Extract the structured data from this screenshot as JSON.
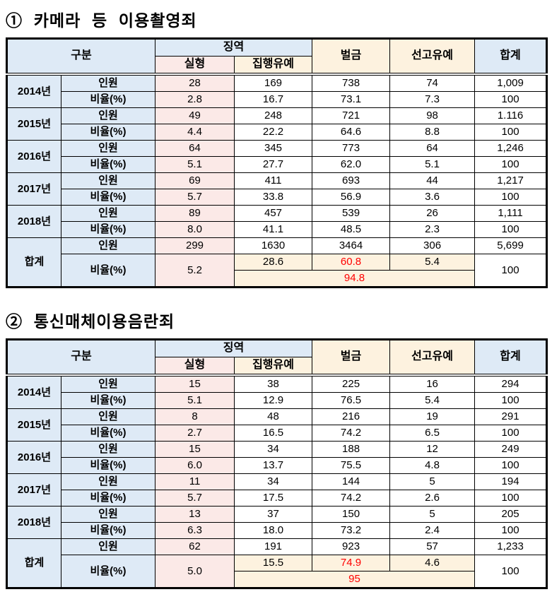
{
  "colors": {
    "header_blue": "#DEEAF6",
    "pink_fill": "#FBE9E7",
    "cream_fill": "#FDF2DF",
    "highlight_red": "#FF0000",
    "border_black": "#000000"
  },
  "header_labels": {
    "gubun": "구분",
    "jingyeok": "징역",
    "silhyeong": "실형",
    "jiphaengyuye": "집행유예",
    "beolgeum": "벌금",
    "seongoyuye": "선고유예",
    "hapgye": "합계"
  },
  "row_labels": {
    "inwon": "인원",
    "biyul": "비율(%)",
    "total": "합계"
  },
  "tables": [
    {
      "title": "① 카메라 등 이용촬영죄",
      "years": [
        {
          "year": "2014년",
          "inwon": [
            "28",
            "169",
            "738",
            "74",
            "1,009"
          ],
          "biyul": [
            "2.8",
            "16.7",
            "73.1",
            "7.3",
            "100"
          ]
        },
        {
          "year": "2015년",
          "inwon": [
            "49",
            "248",
            "721",
            "98",
            "1.116"
          ],
          "biyul": [
            "4.4",
            "22.2",
            "64.6",
            "8.8",
            "100"
          ]
        },
        {
          "year": "2016년",
          "inwon": [
            "64",
            "345",
            "773",
            "64",
            "1,246"
          ],
          "biyul": [
            "5.1",
            "27.7",
            "62.0",
            "5.1",
            "100"
          ]
        },
        {
          "year": "2017년",
          "inwon": [
            "69",
            "411",
            "693",
            "44",
            "1,217"
          ],
          "biyul": [
            "5.7",
            "33.8",
            "56.9",
            "3.6",
            "100"
          ]
        },
        {
          "year": "2018년",
          "inwon": [
            "89",
            "457",
            "539",
            "26",
            "1,111"
          ],
          "biyul": [
            "8.0",
            "41.1",
            "48.5",
            "2.3",
            "100"
          ]
        }
      ],
      "total": {
        "inwon": [
          "299",
          "1630",
          "3464",
          "306",
          "5,699"
        ],
        "silhyeong_ratio": "5.2",
        "sub_ratios": [
          "28.6",
          "60.8",
          "5.4"
        ],
        "sub_ratios_red": [
          false,
          true,
          false
        ],
        "merged_ratio": "94.8",
        "total_ratio": "100"
      }
    },
    {
      "title": "② 통신매체이용음란죄",
      "years": [
        {
          "year": "2014년",
          "inwon": [
            "15",
            "38",
            "225",
            "16",
            "294"
          ],
          "biyul": [
            "5.1",
            "12.9",
            "76.5",
            "5.4",
            "100"
          ]
        },
        {
          "year": "2015년",
          "inwon": [
            "8",
            "48",
            "216",
            "19",
            "291"
          ],
          "biyul": [
            "2.7",
            "16.5",
            "74.2",
            "6.5",
            "100"
          ]
        },
        {
          "year": "2016년",
          "inwon": [
            "15",
            "34",
            "188",
            "12",
            "249"
          ],
          "biyul": [
            "6.0",
            "13.7",
            "75.5",
            "4.8",
            "100"
          ]
        },
        {
          "year": "2017년",
          "inwon": [
            "11",
            "34",
            "144",
            "5",
            "194"
          ],
          "biyul": [
            "5.7",
            "17.5",
            "74.2",
            "2.6",
            "100"
          ]
        },
        {
          "year": "2018년",
          "inwon": [
            "13",
            "37",
            "150",
            "5",
            "205"
          ],
          "biyul": [
            "6.3",
            "18.0",
            "73.2",
            "2.4",
            "100"
          ]
        }
      ],
      "total": {
        "inwon": [
          "62",
          "191",
          "923",
          "57",
          "1,233"
        ],
        "silhyeong_ratio": "5.0",
        "sub_ratios": [
          "15.5",
          "74.9",
          "4.6"
        ],
        "sub_ratios_red": [
          false,
          true,
          false
        ],
        "merged_ratio": "95",
        "total_ratio": "100"
      }
    }
  ]
}
